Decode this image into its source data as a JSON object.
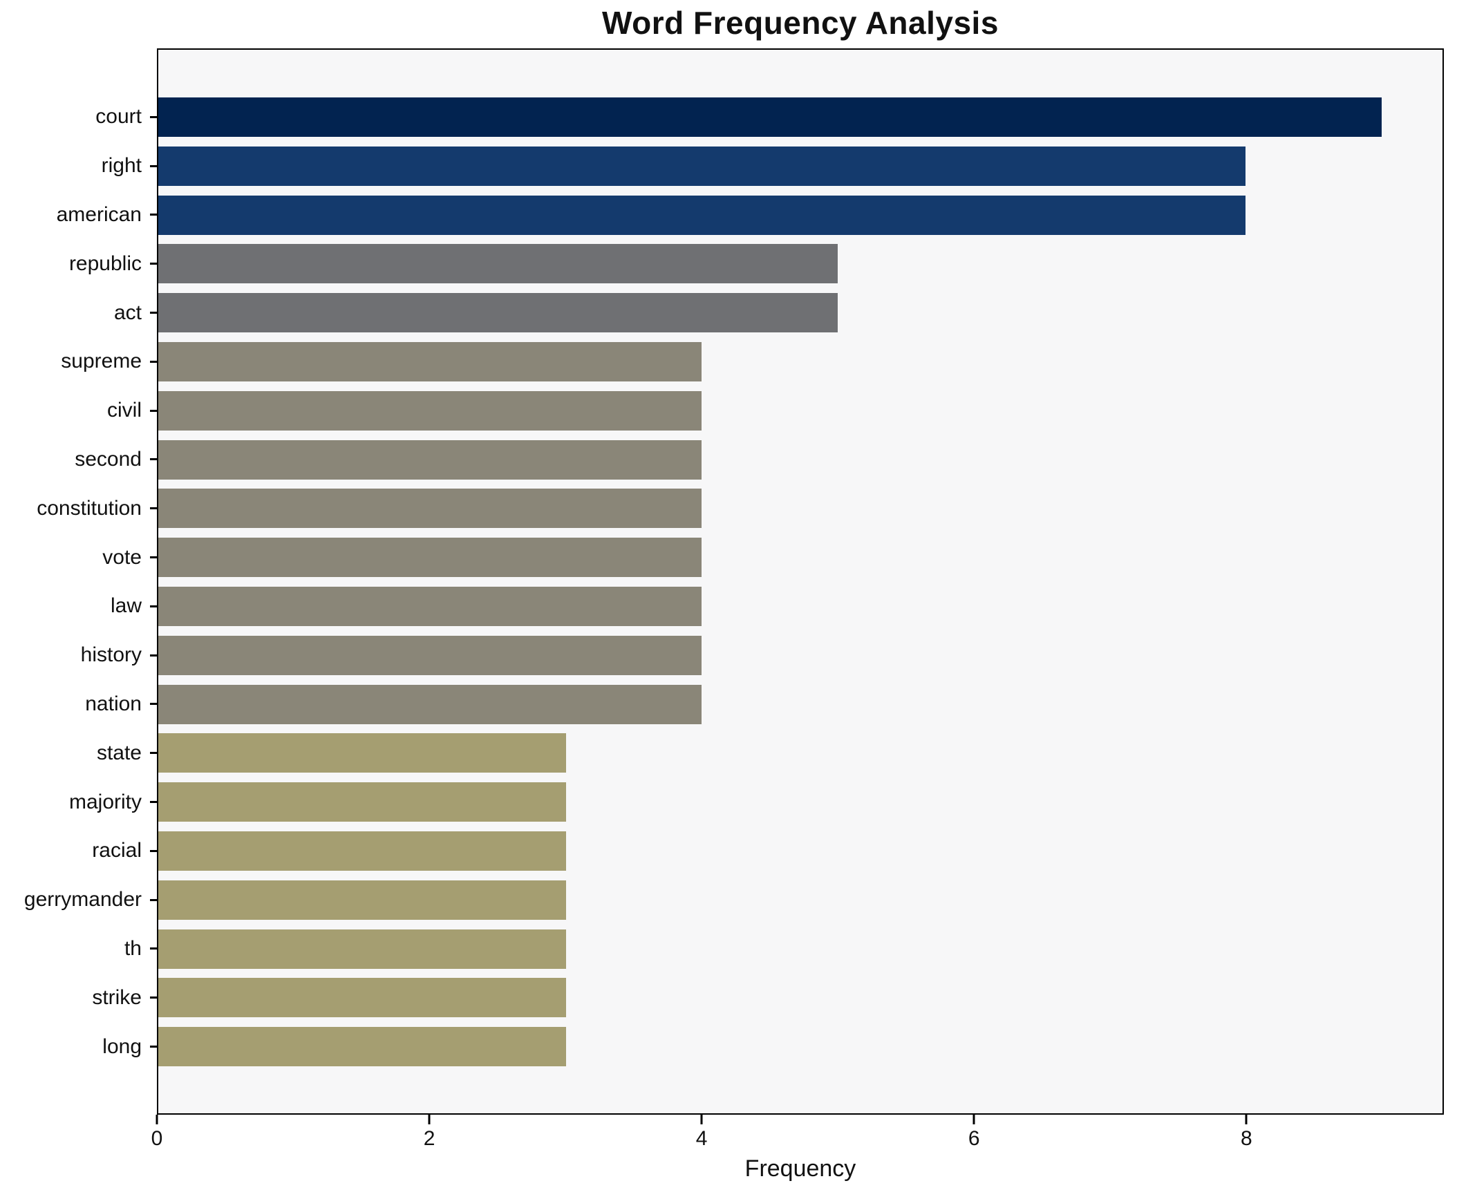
{
  "chart_data": {
    "type": "bar",
    "orientation": "horizontal",
    "title": "Word Frequency Analysis",
    "xlabel": "Frequency",
    "ylabel": "",
    "categories": [
      "court",
      "right",
      "american",
      "republic",
      "act",
      "supreme",
      "civil",
      "second",
      "constitution",
      "vote",
      "law",
      "history",
      "nation",
      "state",
      "majority",
      "racial",
      "gerrymander",
      "th",
      "strike",
      "long"
    ],
    "values": [
      9,
      8,
      8,
      5,
      5,
      4,
      4,
      4,
      4,
      4,
      4,
      4,
      4,
      3,
      3,
      3,
      3,
      3,
      3,
      3
    ],
    "bar_colors": [
      "#022350",
      "#143a6d",
      "#143a6d",
      "#6f7073",
      "#6f7073",
      "#8a8678",
      "#8a8678",
      "#8a8678",
      "#8a8678",
      "#8a8678",
      "#8a8678",
      "#8a8678",
      "#8a8678",
      "#a59e71",
      "#a59e71",
      "#a59e71",
      "#a59e71",
      "#a59e71",
      "#a59e71",
      "#a59e71"
    ],
    "xticks": [
      0,
      2,
      4,
      6,
      8
    ],
    "xlim": [
      0,
      9.45
    ],
    "grid": false,
    "legend": null,
    "plot_background": "#f7f7f8",
    "spine_color": "#000000"
  }
}
